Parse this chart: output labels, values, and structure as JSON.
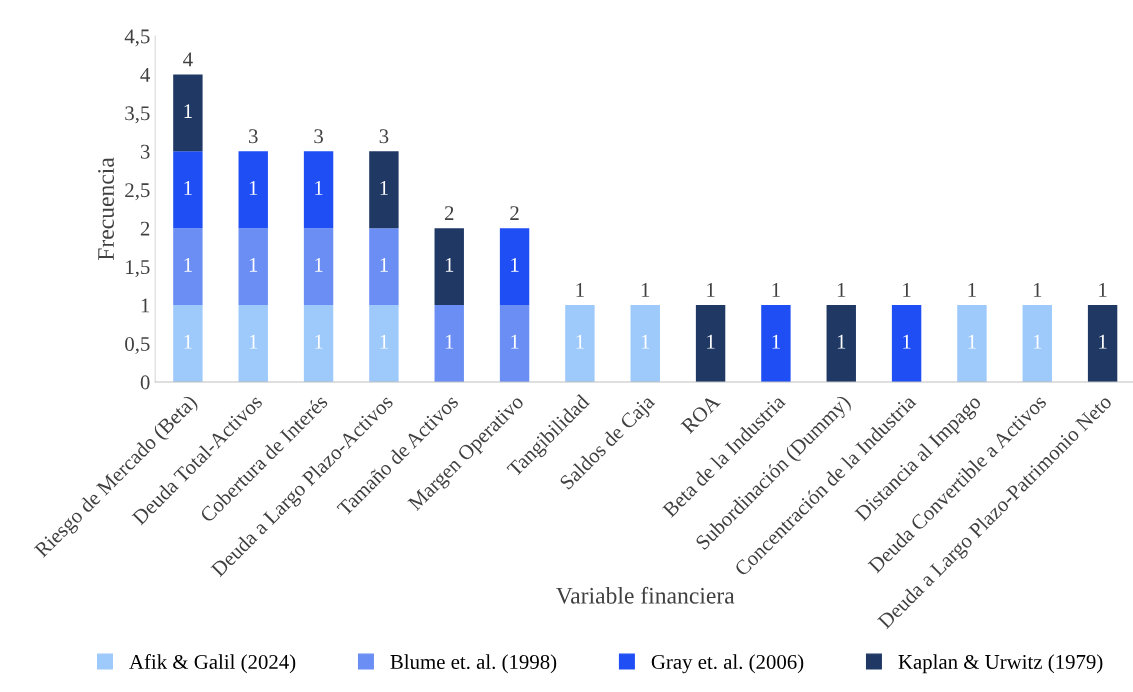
{
  "chart_data": {
    "type": "bar",
    "stacked": true,
    "xlabel": "Variable financiera",
    "ylabel": "Frecuencia",
    "categories": [
      "Riesgo de Mercado (Beta)",
      "Deuda Total-Activos",
      "Cobertura de Interés",
      "Deuda a Largo Plazo-Activos",
      "Tamaño de Activos",
      "Margen Operativo",
      "Tangibilidad",
      "Saldos de Caja",
      "ROA",
      "Beta de la Industria",
      "Subordinación (Dummy)",
      "Concentración de la Industria",
      "Distancia al Impago",
      "Deuda Convertible a Activos",
      "Deuda a Largo Plazo-Patrimonio Neto"
    ],
    "series": [
      {
        "name": "Afik & Galil (2024)",
        "color": "#9dc9fb",
        "values": [
          1,
          1,
          1,
          1,
          null,
          null,
          1,
          1,
          null,
          null,
          null,
          null,
          1,
          1,
          null
        ]
      },
      {
        "name": "Blume et. al. (1998)",
        "color": "#6a8ef4",
        "values": [
          1,
          1,
          1,
          1,
          1,
          1,
          null,
          null,
          null,
          null,
          null,
          null,
          null,
          null,
          null
        ]
      },
      {
        "name": "Gray et. al. (2006)",
        "color": "#1f4ef5",
        "values": [
          1,
          1,
          1,
          null,
          null,
          1,
          null,
          null,
          null,
          1,
          null,
          1,
          null,
          null,
          null
        ]
      },
      {
        "name": "Kaplan & Urwitz (1979)",
        "color": "#1f3864",
        "values": [
          1,
          null,
          null,
          1,
          1,
          null,
          null,
          null,
          1,
          null,
          1,
          null,
          null,
          null,
          1
        ]
      }
    ],
    "totals": [
      "4",
      "3",
      "3",
      "3",
      "2",
      "2",
      "1",
      "1",
      "1",
      "1",
      "1",
      "1",
      "1",
      "1",
      "1"
    ],
    "data_labels": true,
    "ylim": [
      0,
      4.5
    ],
    "yticks": [
      0,
      {
        "value": 0.5,
        "label": "0,5"
      },
      1,
      {
        "value": 1.5,
        "label": "1,5"
      },
      2,
      {
        "value": 2.5,
        "label": "2,5"
      },
      3,
      {
        "value": 3.5,
        "label": "3,5"
      },
      4,
      {
        "value": 4.5,
        "label": "4,5"
      }
    ],
    "grid": false,
    "legend": "bottom"
  }
}
